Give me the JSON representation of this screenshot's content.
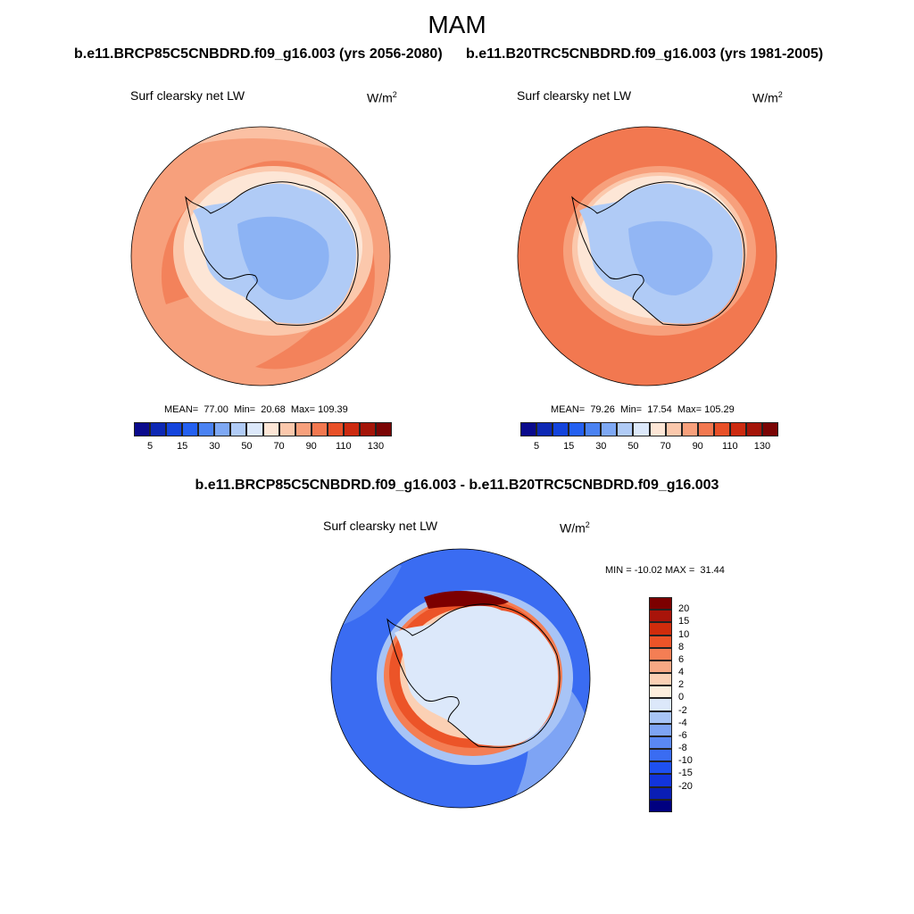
{
  "title": "MAM",
  "panels": [
    {
      "id": "test",
      "run_title": "b.e11.BRCP85C5CNBDRD.f09_g16.003 (yrs 2056-2080)",
      "variable": "Surf clearsky net LW",
      "units_base": "W/m",
      "units_exp": "2",
      "stats": "MEAN=  77.00  Min=  20.68  Max= 109.39"
    },
    {
      "id": "control",
      "run_title": "b.e11.B20TRC5CNBDRD.f09_g16.003 (yrs 1981-2005)",
      "variable": "Surf clearsky net LW",
      "units_base": "W/m",
      "units_exp": "2",
      "stats": "MEAN=  79.26  Min=  17.54  Max= 105.29"
    }
  ],
  "difference": {
    "title": "b.e11.BRCP85C5CNBDRD.f09_g16.003 - b.e11.B20TRC5CNBDRD.f09_g16.003",
    "variable": "Surf clearsky net LW",
    "units_base": "W/m",
    "units_exp": "2",
    "stats": "MIN = -10.02 MAX =  31.44"
  },
  "chart_data": [
    {
      "type": "heatmap",
      "projection": "south polar stereographic",
      "title": "Surf clearsky net LW",
      "subtitle": "b.e11.BRCP85C5CNBDRD.f09_g16.003 (yrs 2056-2080)",
      "units": "W/m2",
      "mean": 77.0,
      "min": 20.68,
      "max": 109.39,
      "colorbar_levels": [
        5,
        10,
        15,
        20,
        30,
        40,
        50,
        60,
        70,
        80,
        90,
        100,
        110,
        120,
        130
      ],
      "colorbar_tick_labels": [
        "5",
        "15",
        "30",
        "50",
        "70",
        "90",
        "110",
        "130"
      ],
      "colors": [
        "#0a0a8c",
        "#0d28b4",
        "#1444dc",
        "#2460f0",
        "#4a82f2",
        "#7ea8f4",
        "#b0cbf6",
        "#dce8fa",
        "#fde6d6",
        "#fbc8ac",
        "#f7a07c",
        "#f27850",
        "#e85028",
        "#cc2a10",
        "#a41408",
        "#7a0404"
      ]
    },
    {
      "type": "heatmap",
      "projection": "south polar stereographic",
      "title": "Surf clearsky net LW",
      "subtitle": "b.e11.B20TRC5CNBDRD.f09_g16.003 (yrs 1981-2005)",
      "units": "W/m2",
      "mean": 79.26,
      "min": 17.54,
      "max": 105.29,
      "colorbar_levels": [
        5,
        10,
        15,
        20,
        30,
        40,
        50,
        60,
        70,
        80,
        90,
        100,
        110,
        120,
        130
      ],
      "colorbar_tick_labels": [
        "5",
        "15",
        "30",
        "50",
        "70",
        "90",
        "110",
        "130"
      ],
      "colors": [
        "#0a0a8c",
        "#0d28b4",
        "#1444dc",
        "#2460f0",
        "#4a82f2",
        "#7ea8f4",
        "#b0cbf6",
        "#dce8fa",
        "#fde6d6",
        "#fbc8ac",
        "#f7a07c",
        "#f27850",
        "#e85028",
        "#cc2a10",
        "#a41408",
        "#7a0404"
      ]
    },
    {
      "type": "heatmap",
      "projection": "south polar stereographic",
      "title": "Surf clearsky net LW",
      "subtitle": "b.e11.BRCP85C5CNBDRD.f09_g16.003 - b.e11.B20TRC5CNBDRD.f09_g16.003",
      "units": "W/m2",
      "min": -10.02,
      "max": 31.44,
      "colorbar_levels": [
        -20,
        -15,
        -10,
        -8,
        -6,
        -4,
        -2,
        0,
        2,
        4,
        6,
        8,
        10,
        15,
        20
      ],
      "colorbar_tick_labels": [
        "20",
        "15",
        "10",
        "8",
        "6",
        "4",
        "2",
        "0",
        "-2",
        "-4",
        "-6",
        "-8",
        "-10",
        "-15",
        "-20"
      ],
      "colors": [
        "#000080",
        "#0a1eb4",
        "#1234dc",
        "#1e50f0",
        "#3a6cf2",
        "#5a88f4",
        "#7ea4f4",
        "#a8c4f6",
        "#dce8fa",
        "#fdeedd",
        "#fbd0b4",
        "#f8a884",
        "#f47e54",
        "#ec5428",
        "#d02c0c",
        "#a8140a",
        "#7c0000"
      ]
    }
  ]
}
